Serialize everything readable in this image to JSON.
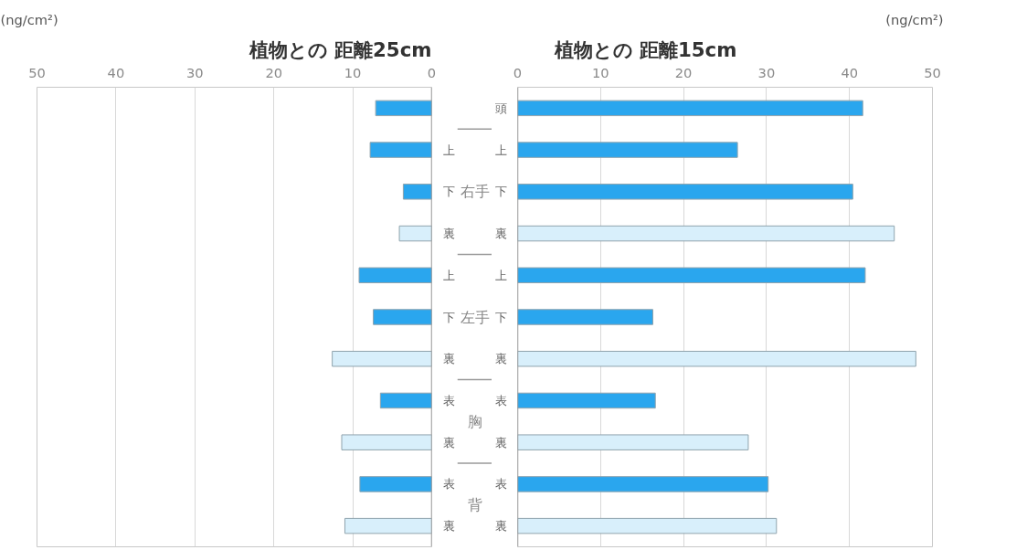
{
  "chart_data": [
    {
      "type": "bar",
      "orientation": "horizontal",
      "title": "植物との 距離25cm",
      "xlabel": "(ng/cm²)",
      "categories": [
        null,
        "上",
        "下",
        "裏",
        "上",
        "下",
        "裏",
        "表",
        "裏",
        "表",
        "裏"
      ],
      "values": [
        7.1,
        7.8,
        3.6,
        4.1,
        9.2,
        7.4,
        12.6,
        6.5,
        11.4,
        9.1,
        11.0
      ],
      "colors": [
        "#2aa6ee",
        "#2aa6ee",
        "#2aa6ee",
        "#d8effb",
        "#2aa6ee",
        "#2aa6ee",
        "#d8effb",
        "#2aa6ee",
        "#d8effb",
        "#2aa6ee",
        "#d8effb"
      ],
      "xlim": [
        50,
        0
      ],
      "xticks": [
        50,
        40,
        30,
        20,
        10,
        0
      ],
      "grid": "x"
    },
    {
      "type": "bar",
      "orientation": "horizontal",
      "title": "植物との 距離15cm",
      "xlabel": "(ng/cm²)",
      "categories": [
        "頭",
        "上",
        "下",
        "裏",
        "上",
        "下",
        "裏",
        "表",
        "裏",
        "表",
        "裏"
      ],
      "values": [
        41.6,
        26.5,
        40.4,
        45.4,
        41.9,
        16.3,
        48.0,
        16.6,
        27.8,
        30.2,
        31.2
      ],
      "colors": [
        "#2aa6ee",
        "#2aa6ee",
        "#2aa6ee",
        "#d8effb",
        "#2aa6ee",
        "#2aa6ee",
        "#d8effb",
        "#2aa6ee",
        "#d8effb",
        "#2aa6ee",
        "#d8effb"
      ],
      "xlim": [
        0,
        50
      ],
      "xticks": [
        0,
        10,
        20,
        30,
        40,
        50
      ],
      "grid": "x",
      "annotations": [
        "右手",
        "左手",
        "胸",
        "背"
      ]
    }
  ]
}
